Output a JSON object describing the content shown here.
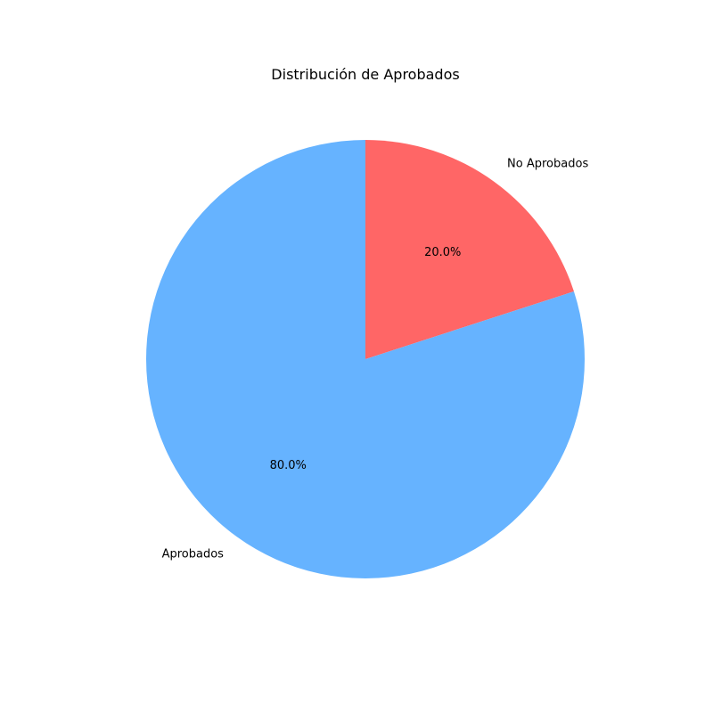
{
  "chart_data": {
    "type": "pie",
    "title": "Distribución de Aprobados",
    "slices": [
      {
        "label": "No Aprobados",
        "value": 20.0,
        "pct_label": "20.0%",
        "color": "#ff6666"
      },
      {
        "label": "Aprobados",
        "value": 80.0,
        "pct_label": "80.0%",
        "color": "#66b3ff"
      }
    ],
    "start_angle_deg": 90,
    "direction": "clockwise"
  }
}
